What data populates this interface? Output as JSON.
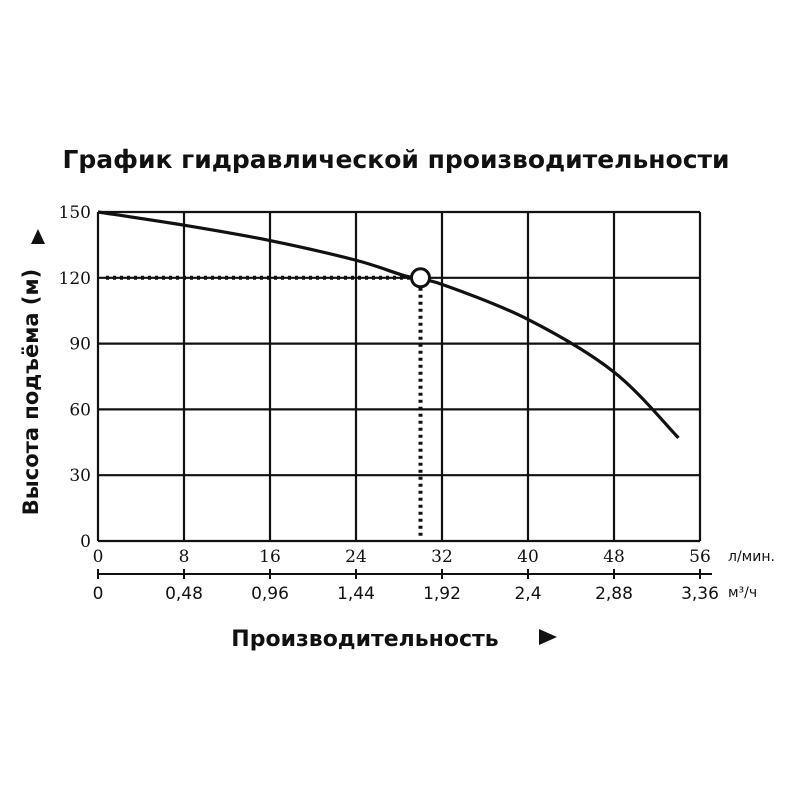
{
  "chart_data": {
    "type": "line",
    "title": "График гидравлической производительности",
    "ylabel": "Высота подъёма (м)",
    "xlabel": "Производительность",
    "ylim": [
      0,
      150
    ],
    "yticks": [
      0,
      30,
      60,
      90,
      120,
      150
    ],
    "xlim": [
      0,
      56
    ],
    "xticks": [
      0,
      8,
      16,
      24,
      32,
      40,
      48,
      56
    ],
    "x_unit": "л/мин.",
    "secondary_x": {
      "unit": "м³/ч",
      "ticks": [
        {
          "at": 0,
          "label": "0"
        },
        {
          "at": 8,
          "label": "0,48"
        },
        {
          "at": 16,
          "label": "0,96"
        },
        {
          "at": 24,
          "label": "1,44"
        },
        {
          "at": 32,
          "label": "1,92"
        },
        {
          "at": 40,
          "label": "2,4"
        },
        {
          "at": 48,
          "label": "2,88"
        },
        {
          "at": 56,
          "label": "3,36"
        }
      ]
    },
    "grid": true,
    "series": [
      {
        "x": [
          0,
          8,
          16,
          24,
          28.5,
          32,
          40,
          48,
          54
        ],
        "y": [
          150,
          144,
          137,
          128,
          121,
          117,
          101,
          77,
          47
        ]
      }
    ],
    "operating_point": {
      "x": 30,
      "y": 120
    }
  }
}
